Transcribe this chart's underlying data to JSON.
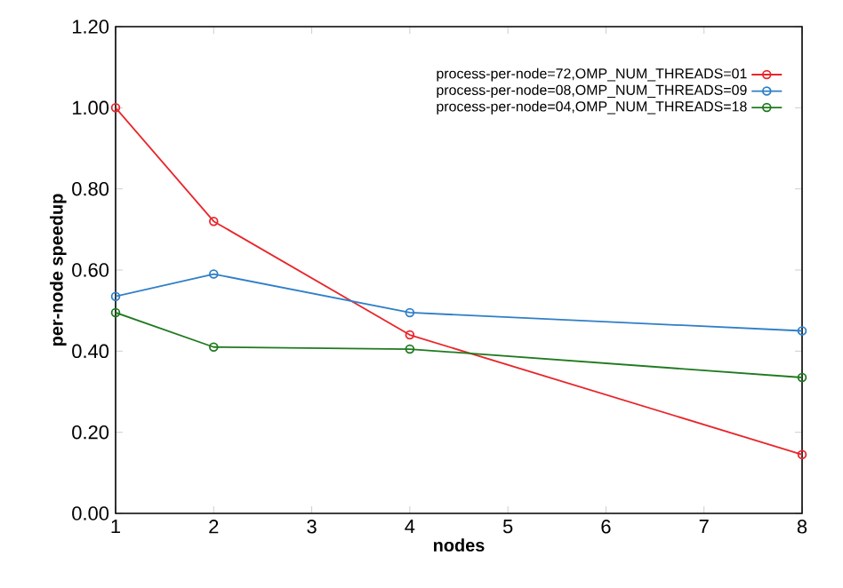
{
  "chart_data": {
    "type": "line",
    "xlabel": "nodes",
    "ylabel": "per-node speedup",
    "x": [
      1,
      2,
      4,
      8
    ],
    "series": [
      {
        "name": "process-per-node=72,OMP_NUM_THREADS=01",
        "color": "#e8262b",
        "values": [
          1.0,
          0.72,
          0.44,
          0.145
        ]
      },
      {
        "name": "process-per-node=08,OMP_NUM_THREADS=09",
        "color": "#2f7fc8",
        "values": [
          0.535,
          0.59,
          0.495,
          0.45
        ]
      },
      {
        "name": "process-per-node=04,OMP_NUM_THREADS=18",
        "color": "#1f7a1f",
        "values": [
          0.495,
          0.41,
          0.405,
          0.335
        ]
      }
    ],
    "xlim": [
      1,
      8
    ],
    "xticks": [
      1,
      2,
      3,
      4,
      5,
      6,
      7,
      8
    ],
    "ylim": [
      0,
      1.2
    ],
    "yticks": [
      {
        "value": 0,
        "label": "0.00"
      },
      {
        "value": 0.2,
        "label": "0.20"
      },
      {
        "value": 0.4,
        "label": "0.40"
      },
      {
        "value": 0.6,
        "label": "0.60"
      },
      {
        "value": 0.8,
        "label": "0.80"
      },
      {
        "value": 1.0,
        "label": "1.00"
      },
      {
        "value": 1.2,
        "label": "1.20"
      }
    ],
    "grid": false,
    "legend": "top right",
    "marker": "circle",
    "line_style": "solid"
  }
}
